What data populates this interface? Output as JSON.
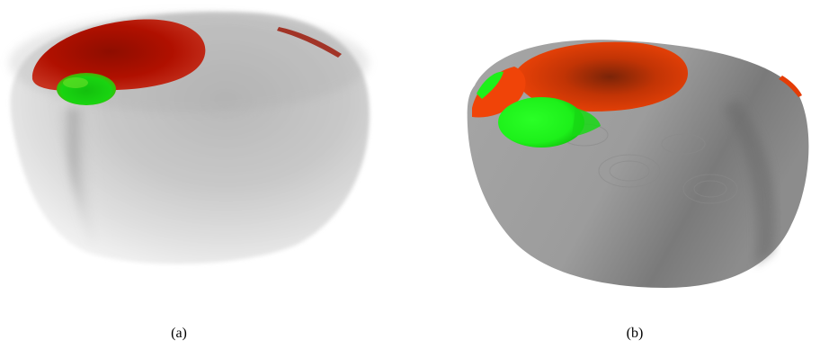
{
  "panels": [
    {
      "id": "a",
      "caption": "(a)",
      "rendering": "translucent-volume",
      "colors": {
        "surface": "#d8d8d8",
        "region_primary": "#b01000",
        "region_secondary": "#19d411"
      }
    },
    {
      "id": "b",
      "caption": "(b)",
      "rendering": "opaque-surface",
      "colors": {
        "surface": "#9a9a9a",
        "region_primary": "#e43c06",
        "region_secondary": "#1df01a"
      }
    }
  ]
}
